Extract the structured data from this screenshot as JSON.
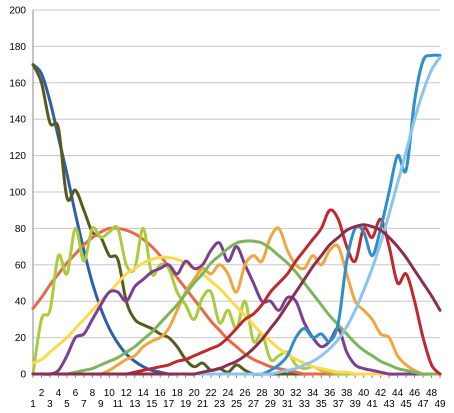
{
  "chart_data": {
    "type": "line",
    "title": "",
    "xlabel": "",
    "ylabel": "",
    "x": [
      1,
      2,
      3,
      4,
      5,
      6,
      7,
      8,
      9,
      10,
      11,
      12,
      13,
      14,
      15,
      16,
      17,
      18,
      19,
      20,
      21,
      22,
      23,
      24,
      25,
      26,
      27,
      28,
      29,
      30,
      31,
      32,
      33,
      34,
      35,
      36,
      37,
      38,
      39,
      40,
      41,
      42,
      43,
      44,
      45,
      46,
      47,
      48,
      49
    ],
    "x_tick_labels": [
      "1",
      "2",
      "3",
      "4",
      "5",
      "6",
      "7",
      "8",
      "9",
      "10",
      "11",
      "12",
      "13",
      "14",
      "15",
      "16",
      "17",
      "18",
      "19",
      "20",
      "21",
      "22",
      "23",
      "24",
      "25",
      "26",
      "27",
      "28",
      "29",
      "30",
      "31",
      "32",
      "33",
      "34",
      "35",
      "36",
      "37",
      "38",
      "39",
      "40",
      "41",
      "42",
      "43",
      "44",
      "45",
      "46",
      "47",
      "48",
      "49"
    ],
    "ylim": [
      0,
      200
    ],
    "y_ticks": [
      0,
      20,
      40,
      60,
      80,
      100,
      120,
      140,
      160,
      180,
      200
    ],
    "grid": true,
    "legend": "none",
    "smooth": true,
    "series": [
      {
        "color": "#2e5fa8",
        "values": [
          170,
          165,
          150,
          130,
          110,
          88,
          68,
          50,
          36,
          25,
          17,
          11,
          7,
          4,
          2,
          1,
          0,
          0,
          0,
          0,
          0,
          0,
          0,
          0,
          0,
          0,
          0,
          0,
          0,
          0,
          0,
          0,
          0,
          0,
          0,
          0,
          0,
          0,
          0,
          0,
          0,
          0,
          0,
          0,
          0,
          0,
          0,
          0,
          0
        ]
      },
      {
        "color": "#5a5a1e",
        "values": [
          170,
          160,
          138,
          135,
          97,
          101,
          90,
          78,
          75,
          65,
          63,
          40,
          30,
          27,
          25,
          22,
          20,
          15,
          8,
          4,
          6,
          2,
          3,
          1,
          5,
          2,
          0,
          0,
          0,
          0,
          0,
          0,
          0,
          0,
          0,
          0,
          0,
          0,
          0,
          0,
          0,
          0,
          0,
          0,
          0,
          0,
          0,
          0,
          0
        ]
      },
      {
        "color": "#e8694a",
        "values": [
          36,
          42,
          49,
          55,
          61,
          66,
          71,
          75,
          78,
          80,
          80,
          79,
          77,
          74,
          70,
          65,
          59,
          53,
          47,
          41,
          35,
          29,
          24,
          19,
          15,
          11,
          8,
          6,
          4,
          3,
          2,
          1,
          0,
          0,
          0,
          0,
          0,
          0,
          0,
          0,
          0,
          0,
          0,
          0,
          0,
          0,
          0,
          0,
          0
        ]
      },
      {
        "color": "#a8cc3c",
        "values": [
          0,
          30,
          35,
          65,
          55,
          80,
          62,
          80,
          75,
          78,
          80,
          60,
          58,
          80,
          55,
          60,
          58,
          45,
          38,
          30,
          42,
          45,
          28,
          35,
          25,
          40,
          18,
          22,
          8,
          10,
          12,
          5,
          3,
          4,
          2,
          1,
          0,
          0,
          0,
          0,
          0,
          0,
          0,
          0,
          0,
          0,
          0,
          0,
          0
        ]
      },
      {
        "color": "#ffd84d",
        "values": [
          6,
          8,
          12,
          16,
          20,
          25,
          30,
          35,
          40,
          45,
          50,
          55,
          58,
          61,
          63,
          64,
          64,
          63,
          61,
          58,
          55,
          51,
          47,
          42,
          37,
          32,
          27,
          22,
          18,
          14,
          11,
          8,
          6,
          4,
          3,
          2,
          1,
          1,
          0,
          0,
          0,
          0,
          0,
          0,
          0,
          0,
          0,
          0,
          0
        ]
      },
      {
        "color": "#7a3f91",
        "values": [
          0,
          0,
          0,
          2,
          10,
          20,
          22,
          30,
          38,
          45,
          45,
          40,
          48,
          52,
          56,
          58,
          60,
          55,
          62,
          58,
          60,
          68,
          72,
          62,
          70,
          60,
          50,
          40,
          40,
          35,
          42,
          40,
          28,
          20,
          15,
          18,
          25,
          12,
          5,
          3,
          2,
          1,
          0,
          0,
          0,
          0,
          0,
          0,
          0
        ]
      },
      {
        "color": "#f0a640",
        "values": [
          0,
          0,
          0,
          0,
          0,
          0,
          0,
          0,
          0,
          2,
          5,
          8,
          10,
          15,
          18,
          20,
          25,
          35,
          45,
          52,
          58,
          55,
          60,
          55,
          45,
          60,
          65,
          62,
          75,
          80,
          68,
          60,
          58,
          65,
          60,
          68,
          70,
          55,
          40,
          35,
          30,
          22,
          20,
          10,
          5,
          2,
          0,
          0,
          0
        ]
      },
      {
        "color": "#7cb55a",
        "values": [
          0,
          0,
          0,
          0,
          0,
          1,
          2,
          3,
          5,
          7,
          9,
          12,
          15,
          19,
          23,
          28,
          33,
          38,
          44,
          50,
          55,
          61,
          65,
          69,
          72,
          73,
          73,
          72,
          69,
          65,
          61,
          56,
          50,
          44,
          38,
          32,
          27,
          22,
          17,
          13,
          10,
          7,
          5,
          3,
          2,
          1,
          0,
          0,
          0
        ]
      },
      {
        "color": "#c0282d",
        "values": [
          0,
          0,
          0,
          0,
          0,
          0,
          0,
          0,
          0,
          0,
          0,
          0,
          1,
          2,
          3,
          4,
          5,
          7,
          8,
          10,
          12,
          14,
          16,
          20,
          25,
          30,
          33,
          38,
          45,
          50,
          55,
          62,
          68,
          74,
          80,
          90,
          85,
          70,
          62,
          80,
          75,
          85,
          70,
          50,
          55,
          40,
          20,
          5,
          0
        ]
      },
      {
        "color": "#2e8ec8",
        "values": [
          0,
          0,
          0,
          0,
          0,
          0,
          0,
          0,
          0,
          0,
          0,
          0,
          0,
          0,
          0,
          0,
          0,
          0,
          0,
          0,
          0,
          0,
          0,
          0,
          0,
          0,
          0,
          0,
          2,
          5,
          10,
          20,
          25,
          20,
          22,
          18,
          28,
          62,
          80,
          78,
          65,
          80,
          100,
          120,
          112,
          150,
          172,
          175,
          175
        ]
      },
      {
        "color": "#8bc4ec",
        "values": [
          0,
          0,
          0,
          0,
          0,
          0,
          0,
          0,
          0,
          0,
          0,
          0,
          0,
          0,
          0,
          0,
          0,
          0,
          0,
          0,
          0,
          0,
          0,
          0,
          0,
          0,
          0,
          0,
          0,
          1,
          2,
          3,
          5,
          7,
          10,
          14,
          19,
          26,
          35,
          46,
          58,
          72,
          88,
          105,
          122,
          140,
          155,
          167,
          174
        ]
      },
      {
        "color": "#8a2f4e",
        "values": [
          0,
          0,
          0,
          0,
          0,
          0,
          0,
          0,
          0,
          0,
          0,
          0,
          0,
          0,
          0,
          0,
          0,
          0,
          0,
          0,
          1,
          2,
          3,
          5,
          7,
          10,
          14,
          19,
          25,
          31,
          38,
          45,
          52,
          59,
          65,
          71,
          75,
          79,
          81,
          82,
          81,
          79,
          75,
          70,
          64,
          57,
          50,
          43,
          35
        ]
      }
    ]
  }
}
